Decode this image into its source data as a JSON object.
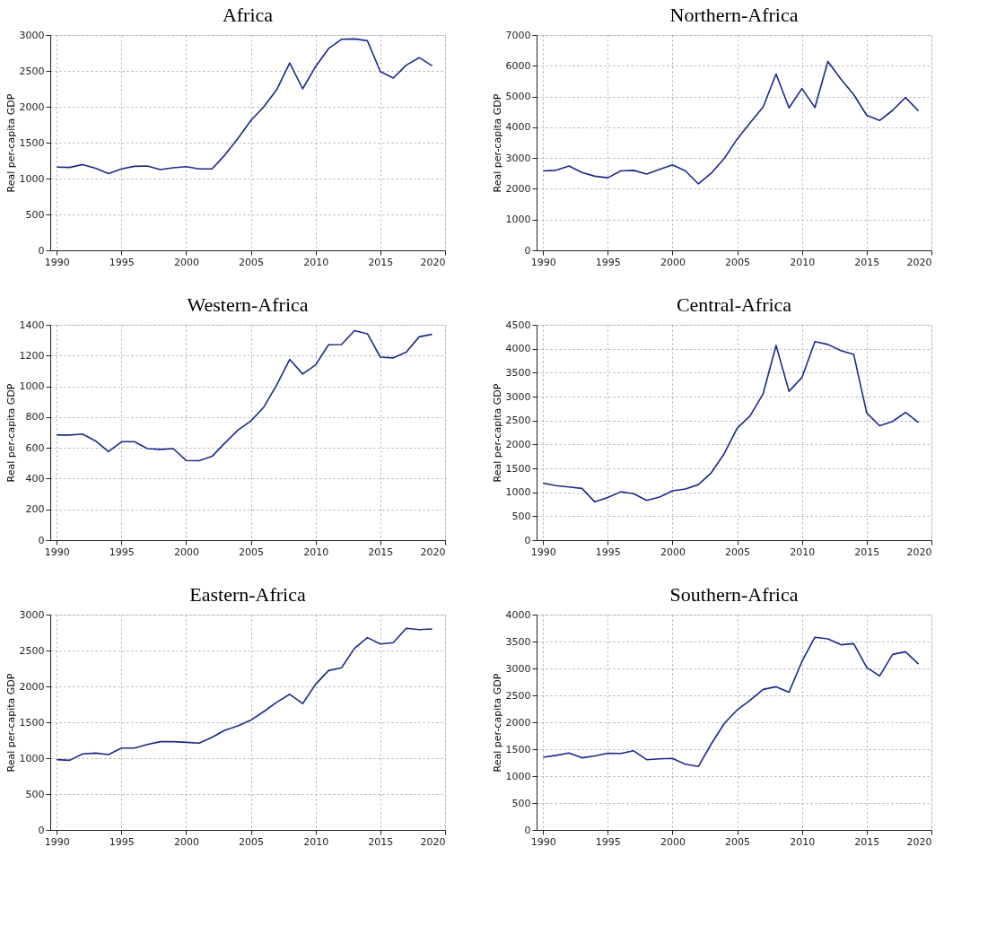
{
  "chart_data": [
    {
      "type": "line",
      "title": "Africa",
      "ylabel": "Real per-capita GDP",
      "color": "#1a2a8a",
      "grid": true,
      "xlim": [
        1989.5,
        2020
      ],
      "xticks": [
        1990,
        1995,
        2000,
        2005,
        2010,
        2015,
        2020
      ],
      "ylim": [
        0,
        3000
      ],
      "yticks": [
        0,
        500,
        1000,
        1500,
        2000,
        2500,
        3000
      ],
      "x": [
        1990,
        1991,
        1992,
        1993,
        1994,
        1995,
        1996,
        1997,
        1998,
        1999,
        2000,
        2001,
        2002,
        2003,
        2004,
        2005,
        2006,
        2007,
        2008,
        2009,
        2010,
        2011,
        2012,
        2013,
        2014,
        2015,
        2016,
        2017,
        2018,
        2019
      ],
      "values": [
        1160,
        1155,
        1195,
        1145,
        1070,
        1135,
        1170,
        1175,
        1125,
        1150,
        1165,
        1135,
        1135,
        1330,
        1560,
        1810,
        2000,
        2240,
        2610,
        2250,
        2560,
        2810,
        2940,
        2945,
        2920,
        2490,
        2400,
        2580,
        2685,
        2570
      ]
    },
    {
      "type": "line",
      "title": "Northern-Africa",
      "ylabel": "Real per-capita GDP",
      "color": "#1a2a8a",
      "grid": true,
      "xlim": [
        1989.5,
        2020
      ],
      "xticks": [
        1990,
        1995,
        2000,
        2005,
        2010,
        2015,
        2020
      ],
      "ylim": [
        0,
        7000
      ],
      "yticks": [
        0,
        1000,
        2000,
        3000,
        4000,
        5000,
        6000,
        7000
      ],
      "x": [
        1990,
        1991,
        1992,
        1993,
        1994,
        1995,
        1996,
        1997,
        1998,
        1999,
        2000,
        2001,
        2002,
        2003,
        2004,
        2005,
        2006,
        2007,
        2008,
        2009,
        2010,
        2011,
        2012,
        2013,
        2014,
        2015,
        2016,
        2017,
        2018,
        2019
      ],
      "values": [
        2580,
        2600,
        2740,
        2530,
        2410,
        2360,
        2580,
        2600,
        2480,
        2630,
        2780,
        2580,
        2160,
        2510,
        2990,
        3620,
        4150,
        4660,
        5730,
        4630,
        5260,
        4640,
        6140,
        5570,
        5060,
        4390,
        4220,
        4550,
        4970,
        4530
      ]
    },
    {
      "type": "line",
      "title": "Western-Africa",
      "ylabel": "Real per-capita GDP",
      "color": "#1a2a8a",
      "grid": true,
      "xlim": [
        1989.5,
        2020
      ],
      "xticks": [
        1990,
        1995,
        2000,
        2005,
        2010,
        2015,
        2020
      ],
      "ylim": [
        0,
        1400
      ],
      "yticks": [
        0,
        200,
        400,
        600,
        800,
        1000,
        1200,
        1400
      ],
      "x": [
        1990,
        1991,
        1992,
        1993,
        1994,
        1995,
        1996,
        1997,
        1998,
        1999,
        2000,
        2001,
        2002,
        2003,
        2004,
        2005,
        2006,
        2007,
        2008,
        2009,
        2010,
        2011,
        2012,
        2013,
        2014,
        2015,
        2016,
        2017,
        2018,
        2019
      ],
      "values": [
        683,
        683,
        690,
        645,
        575,
        640,
        640,
        595,
        590,
        595,
        518,
        516,
        545,
        632,
        715,
        775,
        865,
        1010,
        1175,
        1080,
        1140,
        1270,
        1272,
        1362,
        1342,
        1190,
        1185,
        1222,
        1322,
        1338
      ]
    },
    {
      "type": "line",
      "title": "Central-Africa",
      "ylabel": "Real per-capita GDP",
      "color": "#1a2a8a",
      "grid": true,
      "xlim": [
        1989.5,
        2020
      ],
      "xticks": [
        1990,
        1995,
        2000,
        2005,
        2010,
        2015,
        2020
      ],
      "ylim": [
        0,
        4500
      ],
      "yticks": [
        0,
        500,
        1000,
        1500,
        2000,
        2500,
        3000,
        3500,
        4000,
        4500
      ],
      "x": [
        1990,
        1991,
        1992,
        1993,
        1994,
        1995,
        1996,
        1997,
        1998,
        1999,
        2000,
        2001,
        2002,
        2003,
        2004,
        2005,
        2006,
        2007,
        2008,
        2009,
        2010,
        2011,
        2012,
        2013,
        2014,
        2015,
        2016,
        2017,
        2018,
        2019
      ],
      "values": [
        1190,
        1140,
        1110,
        1080,
        800,
        890,
        1010,
        970,
        830,
        900,
        1030,
        1070,
        1160,
        1410,
        1810,
        2340,
        2600,
        3060,
        4070,
        3110,
        3400,
        4150,
        4090,
        3960,
        3880,
        2660,
        2390,
        2480,
        2670,
        2460
      ]
    },
    {
      "type": "line",
      "title": "Eastern-Africa",
      "ylabel": "Real per-capita GDP",
      "color": "#1a2a8a",
      "grid": true,
      "xlim": [
        1989.5,
        2020
      ],
      "xticks": [
        1990,
        1995,
        2000,
        2005,
        2010,
        2015,
        2020
      ],
      "ylim": [
        0,
        3000
      ],
      "yticks": [
        0,
        500,
        1000,
        1500,
        2000,
        2500,
        3000
      ],
      "x": [
        1990,
        1991,
        1992,
        1993,
        1994,
        1995,
        1996,
        1997,
        1998,
        1999,
        2000,
        2001,
        2002,
        2003,
        2004,
        2005,
        2006,
        2007,
        2008,
        2009,
        2010,
        2011,
        2012,
        2013,
        2014,
        2015,
        2016,
        2017,
        2018,
        2019
      ],
      "values": [
        980,
        970,
        1060,
        1070,
        1050,
        1140,
        1140,
        1190,
        1230,
        1230,
        1220,
        1210,
        1290,
        1390,
        1450,
        1530,
        1650,
        1780,
        1890,
        1760,
        2030,
        2220,
        2260,
        2530,
        2680,
        2590,
        2610,
        2810,
        2790,
        2800
      ]
    },
    {
      "type": "line",
      "title": "Southern-Africa",
      "ylabel": "Real per-capita GDP",
      "color": "#1a2a8a",
      "grid": true,
      "xlim": [
        1989.5,
        2020
      ],
      "xticks": [
        1990,
        1995,
        2000,
        2005,
        2010,
        2015,
        2020
      ],
      "ylim": [
        0,
        4000
      ],
      "yticks": [
        0,
        500,
        1000,
        1500,
        2000,
        2500,
        3000,
        3500,
        4000
      ],
      "x": [
        1990,
        1991,
        1992,
        1993,
        1994,
        1995,
        1996,
        1997,
        1998,
        1999,
        2000,
        2001,
        2002,
        2003,
        2004,
        2005,
        2006,
        2007,
        2008,
        2009,
        2010,
        2011,
        2012,
        2013,
        2014,
        2015,
        2016,
        2017,
        2018,
        2019
      ],
      "values": [
        1350,
        1385,
        1430,
        1340,
        1375,
        1425,
        1420,
        1470,
        1305,
        1320,
        1330,
        1220,
        1180,
        1600,
        1980,
        2230,
        2410,
        2610,
        2660,
        2560,
        3130,
        3580,
        3550,
        3440,
        3460,
        3020,
        2860,
        3260,
        3310,
        3080
      ]
    }
  ]
}
